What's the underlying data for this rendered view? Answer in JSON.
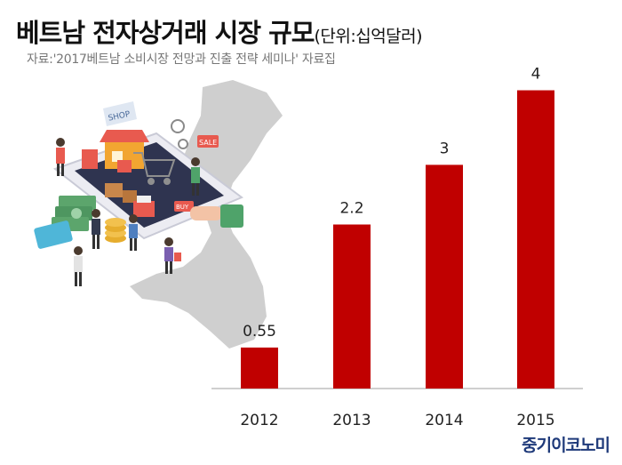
{
  "header": {
    "title": "베트남 전자상거래 시장 규모",
    "unit": "(단위:십억달러)",
    "source": "자료:'2017베트남 소비시장 전망과 진출 전략 세미나' 자료집"
  },
  "illustration": {
    "shop_sign": "SHOP",
    "sale_tag": "SALE",
    "buy_tag": "BUY"
  },
  "publisher": "중기이코노미",
  "colors": {
    "bar": "#c00000",
    "axis": "#bfbfbf",
    "map": "#cfcfcf"
  },
  "chart_data": {
    "type": "bar",
    "categories": [
      "2012",
      "2013",
      "2014",
      "2015"
    ],
    "values": [
      0.55,
      2.2,
      3,
      4
    ],
    "value_labels": [
      "0.55",
      "2.2",
      "3",
      "4"
    ],
    "ylim": [
      0,
      4.4
    ],
    "grid": false
  }
}
